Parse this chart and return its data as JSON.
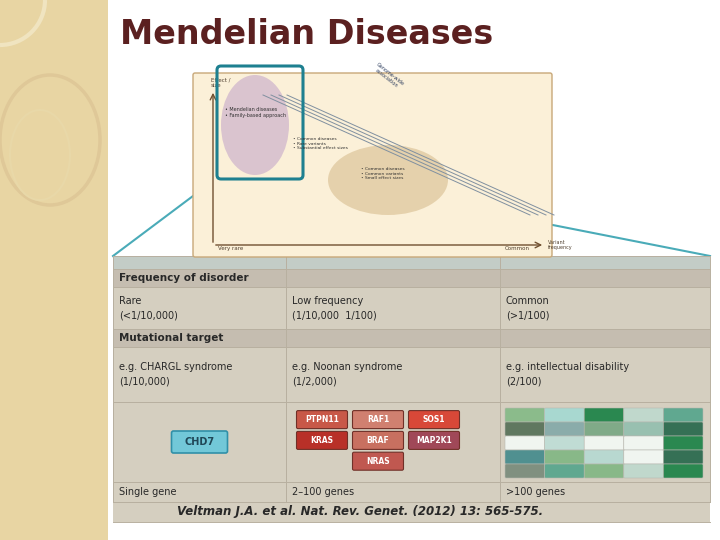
{
  "title": "Mendelian Diseases",
  "title_color": "#5B2020",
  "title_fontsize": 24,
  "bg_left_color": "#E8D5A3",
  "citation": "Veltman J.A. et al. Nat. Rev. Genet. (2012) 13: 565-575.",
  "citation_fontsize": 8.5,
  "freq_header": "Frequency of disorder",
  "freq_col1_line1": "Rare",
  "freq_col1_line2": "(<1/10,000)",
  "freq_col2_line1": "Low frequency",
  "freq_col2_line2": "(1/10,000  1/100)",
  "freq_col3_line1": "Common",
  "freq_col3_line2": "(>1/100)",
  "mut_header": "Mutational target",
  "mut_col1_line1": "e.g. CHARGL syndrome",
  "mut_col1_line2": "(1/10,000)",
  "mut_col2_line1": "e.g. Noonan syndrome",
  "mut_col2_line2": "(1/2,000)",
  "mut_col3_line1": "e.g. intellectual disability",
  "mut_col3_line2": "(2/100)",
  "bottom_col1": "Single gene",
  "bottom_col2": "2–100 genes",
  "bottom_col3": ">100 genes",
  "chd7_color": "#72C8D8",
  "chd7_border": "#3090A8",
  "chd7_text": "CHD7",
  "chd7_text_color": "#204858",
  "table_bg": "#D5CFC0",
  "table_header_bg": "#C5BDB0",
  "table_line_color": "#B8B0A0",
  "teal_line_color": "#4AABB8",
  "gene_buttons": [
    {
      "label": "PTPN11",
      "color": "#C85848",
      "text_color": "#FFFFFF",
      "row": 0,
      "col": 0
    },
    {
      "label": "RAF1",
      "color": "#D08070",
      "text_color": "#FFFFFF",
      "row": 0,
      "col": 1
    },
    {
      "label": "SOS1",
      "color": "#D84838",
      "text_color": "#FFFFFF",
      "row": 0,
      "col": 2
    },
    {
      "label": "KRAS",
      "color": "#B83028",
      "text_color": "#FFFFFF",
      "row": 1,
      "col": 0
    },
    {
      "label": "BRAF",
      "color": "#C87060",
      "text_color": "#FFFFFF",
      "row": 1,
      "col": 1
    },
    {
      "label": "MAP2K1",
      "color": "#A04858",
      "text_color": "#FFFFFF",
      "row": 1,
      "col": 2
    },
    {
      "label": "NRAS",
      "color": "#C05850",
      "text_color": "#FFFFFF",
      "row": 2,
      "col": 1
    }
  ],
  "green_grid": [
    [
      "#8BBB8B",
      "#A8D8D0",
      "#2A8850",
      "#C0D8CC",
      "#60A890"
    ],
    [
      "#607860",
      "#8AACAA",
      "#80AA88",
      "#98C0B0",
      "#357055"
    ],
    [
      "#F0F5F0",
      "#C0DCD4",
      "#F0F5F0",
      "#F0F5F0",
      "#2A8850"
    ],
    [
      "#509090",
      "#88B888",
      "#B8D8D0",
      "#F0F5F0",
      "#357055"
    ],
    [
      "#809080",
      "#60A890",
      "#88B888",
      "#C0D8CC",
      "#2A8850"
    ]
  ],
  "diagram_bg": "#FBF0D8",
  "diagram_border": "#C8A878",
  "teal_box_color": "#1E8090"
}
